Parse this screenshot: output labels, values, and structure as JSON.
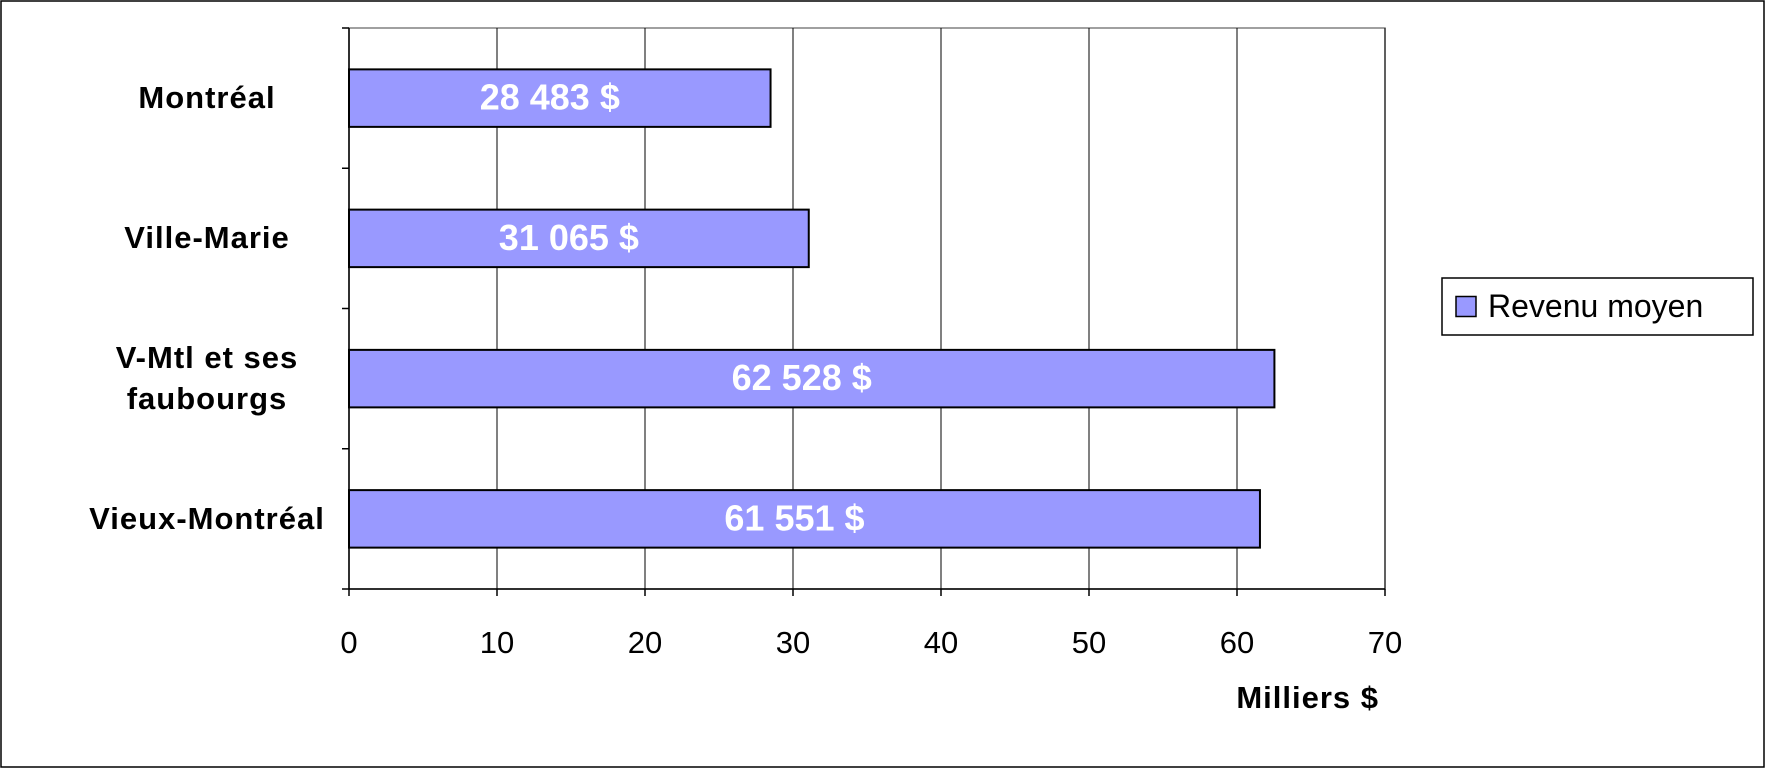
{
  "chart_data": {
    "type": "bar",
    "orientation": "horizontal",
    "categories": [
      "Montréal",
      "Ville-Marie",
      "V-Mtl et ses\nfaubourgs",
      "Vieux-Montréal"
    ],
    "series": [
      {
        "name": "Revenu moyen",
        "color": "#9999ff",
        "values": [
          28.483,
          31.065,
          62.528,
          61.551
        ],
        "value_labels": [
          "28 483 $",
          "31 065 $",
          "62 528 $",
          "61 551 $"
        ]
      }
    ],
    "xlabel": "Milliers $",
    "xlim": [
      0,
      70
    ],
    "xticks": [
      0,
      10,
      20,
      30,
      40,
      50,
      60,
      70
    ],
    "grid": true,
    "legend": "right"
  }
}
